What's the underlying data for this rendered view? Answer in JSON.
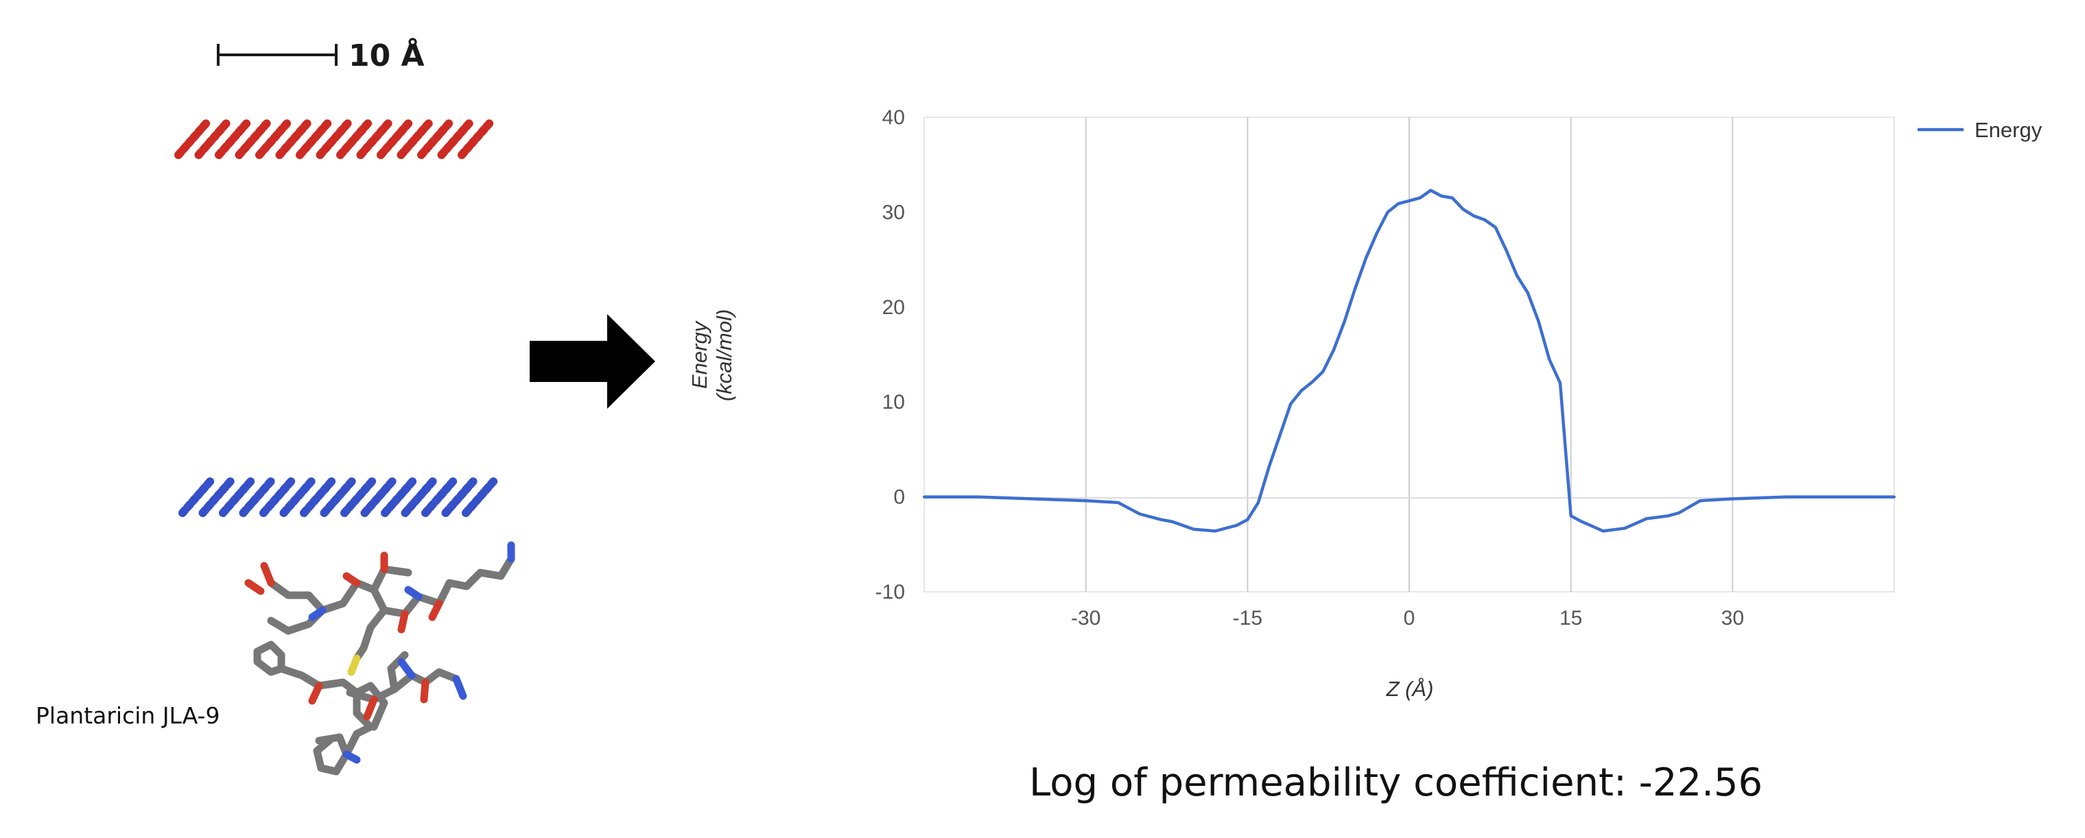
{
  "scale_bar": {
    "label": "10 Å"
  },
  "molecule": {
    "label": "Plantaricin JLA-9"
  },
  "chart_data": {
    "type": "line",
    "title": "",
    "xlabel": "Z (Å)",
    "ylabel": "Energy (kcal/mol)",
    "ylabel_lines": [
      "Energy",
      "(kcal/mol)"
    ],
    "xlim": [
      -45,
      45
    ],
    "ylim": [
      -10,
      40
    ],
    "xticks": [
      -30,
      -15,
      0,
      15,
      30
    ],
    "xtick_labels": [
      "-30",
      "-15",
      "0",
      "15",
      "30"
    ],
    "yticks": [
      40,
      30,
      20,
      10,
      0,
      -10
    ],
    "ytick_labels": [
      "40",
      "30",
      "20",
      "10",
      "0",
      "-10"
    ],
    "grid": "vertical",
    "legend_position": "top-right",
    "series": [
      {
        "name": "Energy",
        "color": "#3d6fd0",
        "x": [
          -45,
          -40,
          -35,
          -30,
          -27,
          -25,
          -23,
          -22,
          -20,
          -18,
          -16,
          -15,
          -14,
          -13,
          -11,
          -10,
          -9,
          -8,
          -7,
          -6,
          -5,
          -4,
          -3,
          -2,
          -1,
          0,
          1,
          2,
          3,
          4,
          5,
          6,
          7,
          8,
          9,
          10,
          11,
          12,
          13,
          14,
          14.5,
          15,
          16,
          17,
          18,
          20,
          21,
          22,
          24,
          25,
          27,
          30,
          35,
          40,
          45
        ],
        "y": [
          0,
          0,
          -0.2,
          -0.4,
          -0.6,
          -1.8,
          -2.4,
          -2.6,
          -3.4,
          -3.6,
          -3,
          -2.4,
          -0.6,
          3.2,
          9.8,
          11.2,
          12.1,
          13.2,
          15.5,
          18.5,
          22,
          25.2,
          27.8,
          30,
          30.9,
          31.2,
          31.5,
          32.3,
          31.7,
          31.5,
          30.3,
          29.6,
          29.2,
          28.4,
          26,
          23.3,
          21.5,
          18.5,
          14.5,
          12,
          5,
          -2,
          -2.6,
          -3.1,
          -3.6,
          -3.3,
          -2.8,
          -2.3,
          -2,
          -1.7,
          -0.4,
          -0.2,
          0,
          0,
          0
        ]
      }
    ]
  },
  "result": {
    "text": "Log of permeability coefficient: -22.56"
  }
}
